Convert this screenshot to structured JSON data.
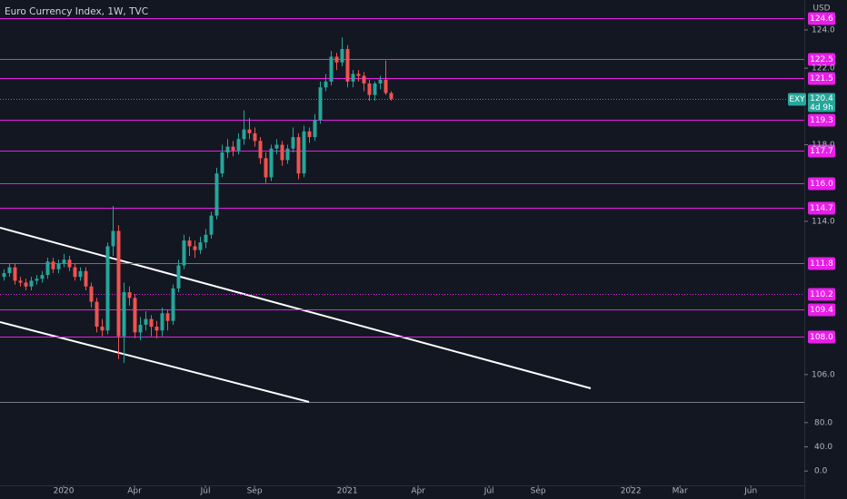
{
  "chart_data": {
    "type": "candlestick",
    "title": "Euro Currency Index, 1W, TVC",
    "currency": "USD",
    "symbol": "EXY",
    "last_price": 120.4,
    "countdown": "4d 9h",
    "up_color": "#26a69a",
    "down_color": "#ef5350",
    "level_color": "#e91ee9",
    "open": [
      111.1,
      111.3,
      111.6,
      110.9,
      110.8,
      110.6,
      110.9,
      111.0,
      111.2,
      111.9,
      111.5,
      111.8,
      112.0,
      111.6,
      111.1,
      111.4,
      110.6,
      109.8,
      108.5,
      108.3,
      112.7,
      113.5,
      108.0,
      110.3,
      110.0,
      108.2,
      108.6,
      108.9,
      108.5,
      108.3,
      109.2,
      108.8,
      110.5,
      111.7,
      113.0,
      112.7,
      112.5,
      112.9,
      113.3,
      114.3,
      116.5,
      117.6,
      117.9,
      117.7,
      118.3,
      118.8,
      118.6,
      118.2,
      117.3,
      116.3,
      117.8,
      118.0,
      117.2,
      117.8,
      118.4,
      116.5,
      118.7,
      118.4,
      119.3,
      121.0,
      121.3,
      122.6,
      122.3,
      123.0,
      121.3,
      121.7,
      121.6,
      121.2,
      120.6,
      121.2,
      121.4,
      120.7
    ],
    "high": [
      111.5,
      111.8,
      111.8,
      111.1,
      111.0,
      111.1,
      111.2,
      111.4,
      112.1,
      112.1,
      112.0,
      112.3,
      112.2,
      111.8,
      111.6,
      111.6,
      110.8,
      110.0,
      108.9,
      112.9,
      114.8,
      113.8,
      110.8,
      110.6,
      110.2,
      109.0,
      109.3,
      109.1,
      108.8,
      109.5,
      109.4,
      110.7,
      112.0,
      113.3,
      113.2,
      113.0,
      113.2,
      113.6,
      114.5,
      116.8,
      118.0,
      118.3,
      118.2,
      118.6,
      119.8,
      119.4,
      118.9,
      118.4,
      117.6,
      118.0,
      118.3,
      118.2,
      118.0,
      118.9,
      118.6,
      119.0,
      118.9,
      119.6,
      121.3,
      121.7,
      122.9,
      122.8,
      123.6,
      123.2,
      121.9,
      121.9,
      121.8,
      121.4,
      121.3,
      121.6,
      122.4,
      120.8
    ],
    "low": [
      110.9,
      111.1,
      110.7,
      110.6,
      110.4,
      110.4,
      110.7,
      110.8,
      111.0,
      111.3,
      111.3,
      111.6,
      111.4,
      110.9,
      110.9,
      110.4,
      109.5,
      108.2,
      108.0,
      108.1,
      112.2,
      106.8,
      106.6,
      109.6,
      107.9,
      107.8,
      108.3,
      108.0,
      107.9,
      108.0,
      108.3,
      108.6,
      110.3,
      111.5,
      112.2,
      112.1,
      112.3,
      112.6,
      113.1,
      114.1,
      116.3,
      117.3,
      117.4,
      117.5,
      118.0,
      118.3,
      117.9,
      117.0,
      116.0,
      116.1,
      117.5,
      116.9,
      117.0,
      117.6,
      116.2,
      116.3,
      118.1,
      118.2,
      119.1,
      120.8,
      121.1,
      121.9,
      122.1,
      121.0,
      121.0,
      121.3,
      120.8,
      120.3,
      120.3,
      120.9,
      120.6,
      120.3
    ],
    "close": [
      111.3,
      111.6,
      110.9,
      110.8,
      110.6,
      110.9,
      111.0,
      111.2,
      111.9,
      111.5,
      111.8,
      112.0,
      111.6,
      111.1,
      111.4,
      110.6,
      109.8,
      108.5,
      108.3,
      112.7,
      113.5,
      108.0,
      110.3,
      110.0,
      108.2,
      108.6,
      108.9,
      108.5,
      108.3,
      109.2,
      108.8,
      110.5,
      111.7,
      113.0,
      112.7,
      112.5,
      112.9,
      113.3,
      114.3,
      116.5,
      117.6,
      117.9,
      117.7,
      118.3,
      118.8,
      118.6,
      118.2,
      117.3,
      116.3,
      117.8,
      118.0,
      117.2,
      117.8,
      118.4,
      116.5,
      118.7,
      118.4,
      119.3,
      121.0,
      121.3,
      122.6,
      122.3,
      123.0,
      121.3,
      121.7,
      121.6,
      121.2,
      120.6,
      121.2,
      121.4,
      120.7,
      120.4
    ],
    "xlim": [
      -0.67,
      146.8
    ],
    "xticks": [
      {
        "value": 11,
        "label": "2020"
      },
      {
        "value": 24,
        "label": "Apr"
      },
      {
        "value": 37,
        "label": "Jul"
      },
      {
        "value": 46,
        "label": "Sep"
      },
      {
        "value": 63,
        "label": "2021"
      },
      {
        "value": 76,
        "label": "Apr"
      },
      {
        "value": 89,
        "label": "Jul"
      },
      {
        "value": 98,
        "label": "Sep"
      },
      {
        "value": 115,
        "label": "2022"
      },
      {
        "value": 124,
        "label": "Mar"
      },
      {
        "value": 137,
        "label": "Jun"
      }
    ],
    "ylim": [
      104.57,
      125.56
    ],
    "yticks": [
      {
        "value": 124,
        "label": "124.0"
      },
      {
        "value": 122,
        "label": "122.0"
      },
      {
        "value": 118,
        "label": "118.0"
      },
      {
        "value": 114,
        "label": "114.0"
      },
      {
        "value": 106,
        "label": "106.0"
      }
    ],
    "levels": [
      124.6,
      122.5,
      121.5,
      119.3,
      117.7,
      {
        "value": 116,
        "label": "116.0"
      },
      114.7,
      111.8,
      110.2,
      109.4,
      {
        "value": 108,
        "label": "108.0"
      }
    ],
    "level_styles": [
      "solid",
      "solid",
      "solid",
      "solid",
      "solid",
      "solid",
      "solid",
      "solid",
      "dotted",
      "solid",
      "solid"
    ],
    "y2lim": [
      -23.7,
      112.6
    ],
    "y2ticks": [
      {
        "value": 80,
        "label": "80.0"
      },
      {
        "value": 40,
        "label": "40.0"
      },
      {
        "value": 0,
        "label": "0.0"
      }
    ]
  }
}
